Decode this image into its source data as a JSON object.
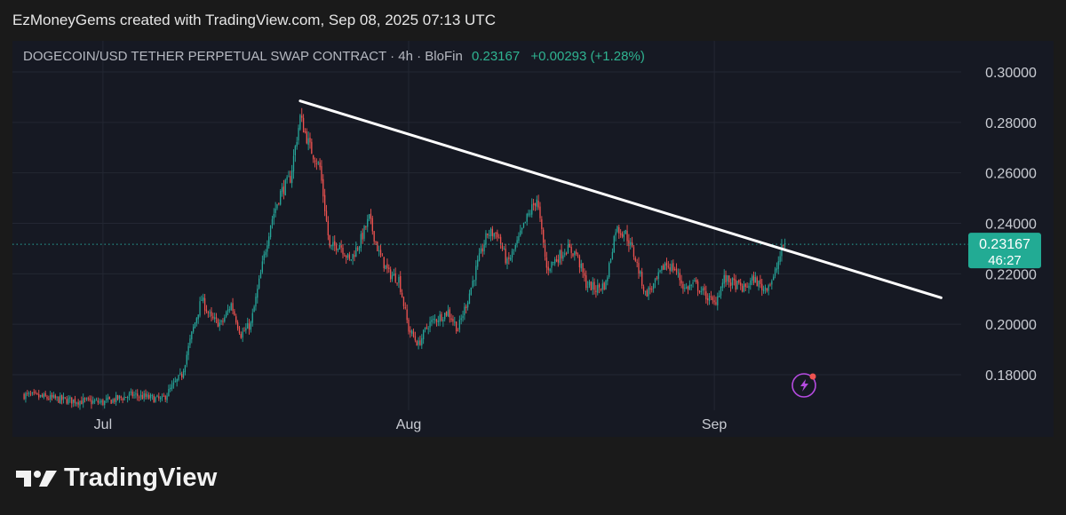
{
  "caption": "EzMoneyGems created with TradingView.com, Sep 08, 2025 07:13 UTC",
  "header": {
    "symbol": "DOGECOIN/USD TETHER PERPETUAL SWAP CONTRACT · 4h · BloFin",
    "price": "0.23167",
    "change": "+0.00293 (+1.28%)"
  },
  "price_tag": {
    "price": "0.23167",
    "countdown": "46:27"
  },
  "brand": {
    "name": "TradingView"
  },
  "colors": {
    "up": "#26a69a",
    "down": "#ef5350",
    "trendline": "#ffffff",
    "price_line": "#26a69a",
    "background": "#161923",
    "grid": "#232733"
  },
  "icons": [
    "lightning-alert-icon",
    "tradingview-logo-icon"
  ],
  "chart_data": {
    "type": "candlestick",
    "title": "DOGECOIN/USD TETHER PERPETUAL SWAP CONTRACT · 4h · BloFin",
    "interval": "4h",
    "y_ticks": [
      "0.30000",
      "0.28000",
      "0.26000",
      "0.24000",
      "0.22000",
      "0.20000",
      "0.18000"
    ],
    "x_ticks": [
      "Jul",
      "Aug",
      "Sep"
    ],
    "ylim": [
      0.166,
      0.3
    ],
    "grid": true,
    "last_price": 0.23167,
    "close_path": [
      [
        "2025-06-23",
        0.172
      ],
      [
        "2025-06-27",
        0.17
      ],
      [
        "2025-07-01",
        0.169
      ],
      [
        "2025-07-04",
        0.172
      ],
      [
        "2025-07-07",
        0.17
      ],
      [
        "2025-07-09",
        0.18
      ],
      [
        "2025-07-10",
        0.196
      ],
      [
        "2025-07-11",
        0.21
      ],
      [
        "2025-07-12",
        0.202
      ],
      [
        "2025-07-13",
        0.2
      ],
      [
        "2025-07-14",
        0.208
      ],
      [
        "2025-07-15",
        0.196
      ],
      [
        "2025-07-16",
        0.2
      ],
      [
        "2025-07-17",
        0.22
      ],
      [
        "2025-07-18",
        0.24
      ],
      [
        "2025-07-19",
        0.252
      ],
      [
        "2025-07-20",
        0.258
      ],
      [
        "2025-07-21",
        0.282
      ],
      [
        "2025-07-22",
        0.27
      ],
      [
        "2025-07-23",
        0.262
      ],
      [
        "2025-07-24",
        0.23
      ],
      [
        "2025-07-25",
        0.232
      ],
      [
        "2025-07-26",
        0.225
      ],
      [
        "2025-07-27",
        0.232
      ],
      [
        "2025-07-28",
        0.242
      ],
      [
        "2025-07-29",
        0.228
      ],
      [
        "2025-07-30",
        0.22
      ],
      [
        "2025-07-31",
        0.218
      ],
      [
        "2025-08-01",
        0.198
      ],
      [
        "2025-08-02",
        0.192
      ],
      [
        "2025-08-03",
        0.2
      ],
      [
        "2025-08-05",
        0.205
      ],
      [
        "2025-08-06",
        0.198
      ],
      [
        "2025-08-07",
        0.21
      ],
      [
        "2025-08-08",
        0.224
      ],
      [
        "2025-08-09",
        0.236
      ],
      [
        "2025-08-10",
        0.236
      ],
      [
        "2025-08-11",
        0.224
      ],
      [
        "2025-08-12",
        0.232
      ],
      [
        "2025-08-13",
        0.242
      ],
      [
        "2025-08-14",
        0.25
      ],
      [
        "2025-08-15",
        0.222
      ],
      [
        "2025-08-16",
        0.226
      ],
      [
        "2025-08-17",
        0.23
      ],
      [
        "2025-08-18",
        0.228
      ],
      [
        "2025-08-19",
        0.216
      ],
      [
        "2025-08-20",
        0.214
      ],
      [
        "2025-08-21",
        0.216
      ],
      [
        "2025-08-22",
        0.238
      ],
      [
        "2025-08-23",
        0.236
      ],
      [
        "2025-08-24",
        0.226
      ],
      [
        "2025-08-25",
        0.212
      ],
      [
        "2025-08-26",
        0.216
      ],
      [
        "2025-08-27",
        0.224
      ],
      [
        "2025-08-28",
        0.222
      ],
      [
        "2025-08-29",
        0.214
      ],
      [
        "2025-08-30",
        0.216
      ],
      [
        "2025-08-31",
        0.212
      ],
      [
        "2025-09-01",
        0.208
      ],
      [
        "2025-09-02",
        0.218
      ],
      [
        "2025-09-03",
        0.216
      ],
      [
        "2025-09-04",
        0.214
      ],
      [
        "2025-09-05",
        0.218
      ],
      [
        "2025-09-06",
        0.214
      ],
      [
        "2025-09-07",
        0.218
      ],
      [
        "2025-09-08",
        0.2317
      ]
    ],
    "trendline": {
      "start": [
        "2025-07-21",
        0.2885
      ],
      "end": [
        "2025-09-24",
        0.2105
      ]
    }
  }
}
